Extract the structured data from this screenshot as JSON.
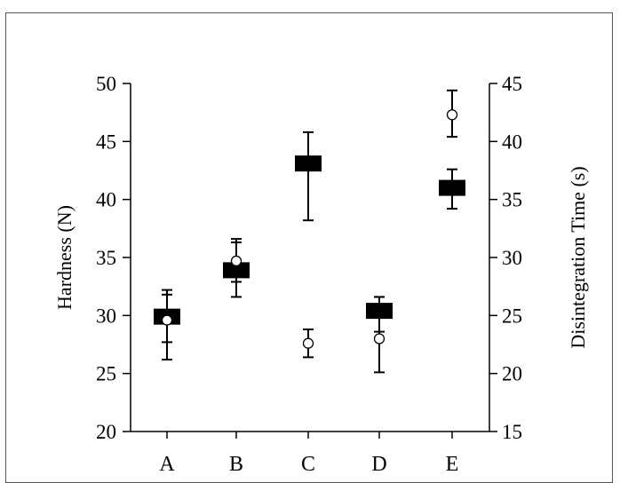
{
  "chart_data": {
    "type": "scatter",
    "categories": [
      "A",
      "B",
      "C",
      "D",
      "E"
    ],
    "title": "",
    "y_left": {
      "label": "Hardness (N)",
      "range": [
        20,
        50
      ],
      "ticks": [
        20,
        25,
        30,
        35,
        40,
        45,
        50
      ]
    },
    "y_right": {
      "label": "Disintegration Time (s)",
      "range": [
        15,
        45
      ],
      "ticks": [
        15,
        20,
        25,
        30,
        35,
        40,
        45
      ]
    },
    "grid": false,
    "legend": "none",
    "series": [
      {
        "marker": "filled-rectangle",
        "axis": "left",
        "values": [
          29.9,
          33.9,
          43.1,
          30.4,
          41.0
        ],
        "err_low": [
          26.2,
          31.6,
          38.2,
          28.6,
          39.2
        ],
        "err_high": [
          31.8,
          36.6,
          45.8,
          31.6,
          42.6
        ]
      },
      {
        "marker": "open-circle",
        "axis": "right",
        "values": [
          24.6,
          29.7,
          22.6,
          23.0,
          42.3
        ],
        "err_low": [
          22.7,
          27.9,
          21.4,
          20.1,
          40.4
        ],
        "err_high": [
          27.2,
          31.3,
          23.8,
          26.6,
          44.4
        ]
      }
    ],
    "colors": {
      "axis": "#000000",
      "marker_fill": "#000000",
      "circle_fill": "#ffffff"
    }
  }
}
